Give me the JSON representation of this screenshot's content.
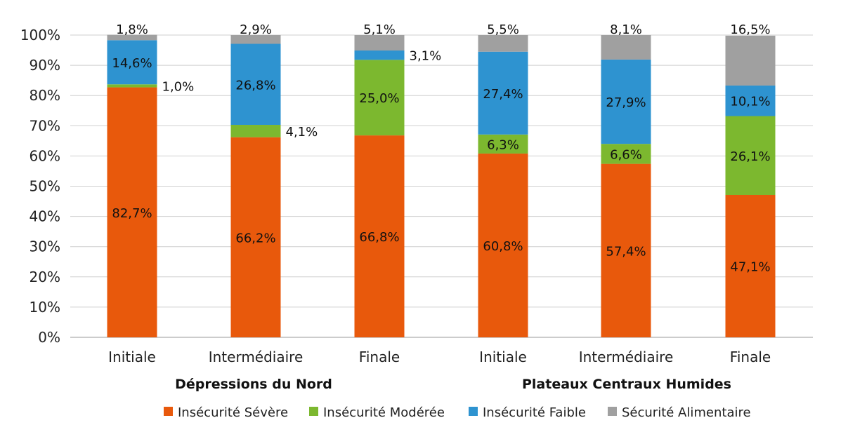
{
  "chart_data": {
    "type": "bar",
    "stacked": true,
    "groups": [
      {
        "label": "Dépressions du Nord",
        "categories": [
          "Initiale",
          "Intermédiaire",
          "Finale"
        ]
      },
      {
        "label": "Plateaux Centraux Humides",
        "categories": [
          "Initiale",
          "Intermédiaire",
          "Finale"
        ]
      }
    ],
    "categories": [
      "Initiale",
      "Intermédiaire",
      "Finale",
      "Initiale",
      "Intermédiaire",
      "Finale"
    ],
    "series": [
      {
        "name": "Insécurité Sévère",
        "color": "#e8590c",
        "values": [
          82.7,
          66.2,
          66.8,
          60.8,
          57.4,
          47.1
        ],
        "labels": [
          "82,7%",
          "66,2%",
          "66,8%",
          "60,8%",
          "57,4%",
          "47,1%"
        ]
      },
      {
        "name": "Insécurité Modérée",
        "color": "#7cb82f",
        "values": [
          1.0,
          4.1,
          25.0,
          6.3,
          6.6,
          26.1
        ],
        "labels": [
          "1,0%",
          "4,1%",
          "25,0%",
          "6,3%",
          "6,6%",
          "26,1%"
        ]
      },
      {
        "name": "Insécurité Faible",
        "color": "#2e93d0",
        "values": [
          14.6,
          26.8,
          3.1,
          27.4,
          27.9,
          10.1
        ],
        "labels": [
          "14,6%",
          "26,8%",
          "3,1%",
          "27,4%",
          "27,9%",
          "10,1%"
        ]
      },
      {
        "name": "Sécurité Alimentaire",
        "color": "#a0a0a0",
        "values": [
          1.8,
          2.9,
          5.1,
          5.5,
          8.1,
          16.5
        ],
        "labels": [
          "1,8%",
          "2,9%",
          "5,1%",
          "5,5%",
          "8,1%",
          "16,5%"
        ]
      }
    ],
    "yticks": [
      "0%",
      "10%",
      "20%",
      "30%",
      "40%",
      "50%",
      "60%",
      "70%",
      "80%",
      "90%",
      "100%"
    ],
    "ylim": [
      0,
      100
    ],
    "grid": true,
    "legend_position": "bottom"
  }
}
